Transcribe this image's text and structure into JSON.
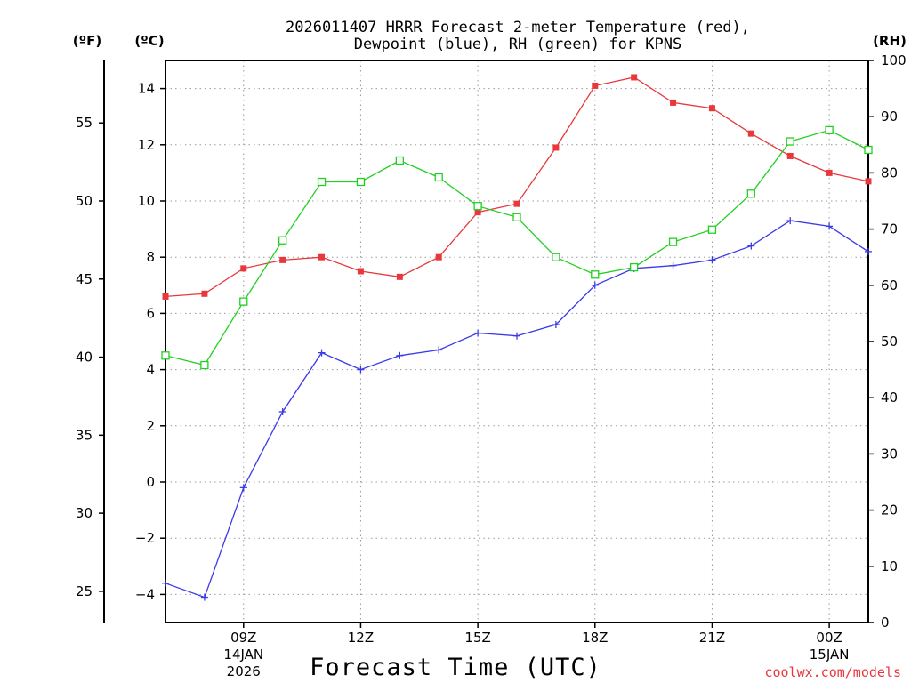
{
  "chart_data": {
    "type": "line",
    "title_line1": "2026011407 HRRR Forecast 2-meter Temperature (red),",
    "title_line2": "Dewpoint (blue), RH (green) for KPNS",
    "xlabel": "Forecast Time (UTC)",
    "credit": "coolwx.com/models",
    "left_unit_f": "(ºF)",
    "left_unit_c": "(ºC)",
    "right_unit": "(RH)",
    "x": [
      7,
      8,
      9,
      10,
      11,
      12,
      13,
      14,
      15,
      16,
      17,
      18,
      19,
      20,
      21,
      22,
      23,
      24,
      25
    ],
    "xlim": [
      7,
      25
    ],
    "x_ticks": [
      {
        "x": 9,
        "label": "09Z",
        "sub1": "14JAN",
        "sub2": "2026"
      },
      {
        "x": 12,
        "label": "12Z",
        "sub1": "",
        "sub2": ""
      },
      {
        "x": 15,
        "label": "15Z",
        "sub1": "",
        "sub2": ""
      },
      {
        "x": 18,
        "label": "18Z",
        "sub1": "",
        "sub2": ""
      },
      {
        "x": 21,
        "label": "21Z",
        "sub1": "",
        "sub2": ""
      },
      {
        "x": 24,
        "label": "00Z",
        "sub1": "15JAN",
        "sub2": ""
      }
    ],
    "ylim_c": [
      -5,
      15
    ],
    "c_ticks": [
      -4,
      -2,
      0,
      2,
      4,
      6,
      8,
      10,
      12,
      14
    ],
    "f_ticks": [
      25,
      30,
      35,
      40,
      45,
      50,
      55
    ],
    "rh_ticks": [
      0,
      10,
      20,
      30,
      40,
      50,
      60,
      70,
      80,
      90,
      100
    ],
    "ylim_rh": [
      0,
      100
    ],
    "colors": {
      "temp": "#e8383d",
      "dewp": "#3a3ae8",
      "rh": "#22d022"
    },
    "series": [
      {
        "name": "Temperature (°C)",
        "key": "temp",
        "axis": "c",
        "values": [
          6.6,
          6.7,
          7.6,
          7.9,
          8.0,
          7.5,
          7.3,
          8.0,
          9.6,
          9.9,
          11.9,
          14.1,
          14.4,
          13.5,
          13.3,
          12.4,
          11.6,
          11.0,
          10.7
        ]
      },
      {
        "name": "Dewpoint (°C)",
        "key": "dewp",
        "axis": "c",
        "values": [
          -3.6,
          -4.1,
          -0.2,
          2.5,
          4.6,
          4.0,
          4.5,
          4.7,
          5.3,
          5.2,
          5.6,
          7.0,
          7.6,
          7.7,
          7.9,
          8.4,
          9.3,
          9.1,
          8.2
        ]
      },
      {
        "name": "Relative Humidity (%)",
        "key": "rh",
        "axis": "rh",
        "values": [
          47.5,
          45.8,
          57.1,
          68.0,
          78.4,
          78.4,
          82.2,
          79.2,
          74.1,
          72.1,
          65.0,
          61.9,
          63.2,
          67.7,
          69.9,
          76.3,
          85.6,
          87.6,
          84.1
        ]
      }
    ]
  }
}
